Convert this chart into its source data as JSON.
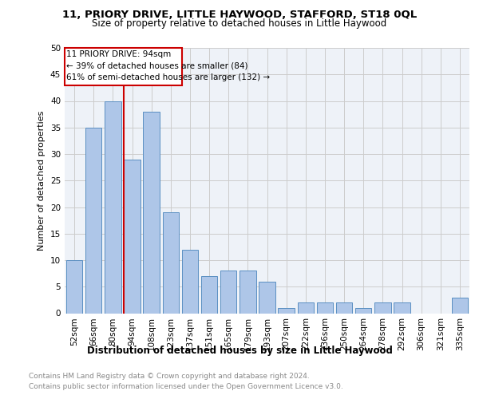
{
  "title1": "11, PRIORY DRIVE, LITTLE HAYWOOD, STAFFORD, ST18 0QL",
  "title2": "Size of property relative to detached houses in Little Haywood",
  "xlabel": "Distribution of detached houses by size in Little Haywood",
  "ylabel": "Number of detached properties",
  "footnote1": "Contains HM Land Registry data © Crown copyright and database right 2024.",
  "footnote2": "Contains public sector information licensed under the Open Government Licence v3.0.",
  "categories": [
    "52sqm",
    "66sqm",
    "80sqm",
    "94sqm",
    "108sqm",
    "123sqm",
    "137sqm",
    "151sqm",
    "165sqm",
    "179sqm",
    "193sqm",
    "207sqm",
    "222sqm",
    "236sqm",
    "250sqm",
    "264sqm",
    "278sqm",
    "292sqm",
    "306sqm",
    "321sqm",
    "335sqm"
  ],
  "values": [
    10,
    35,
    40,
    29,
    38,
    19,
    12,
    7,
    8,
    8,
    6,
    1,
    2,
    2,
    2,
    1,
    2,
    2,
    0,
    0,
    3
  ],
  "bar_color": "#aec6e8",
  "bar_edge_color": "#5a8fc2",
  "grid_color": "#cccccc",
  "property_line_x": 3,
  "property_label": "11 PRIORY DRIVE: 94sqm",
  "annotation_line1": "← 39% of detached houses are smaller (84)",
  "annotation_line2": "61% of semi-detached houses are larger (132) →",
  "box_color": "#cc0000",
  "ylim": [
    0,
    50
  ],
  "yticks": [
    0,
    5,
    10,
    15,
    20,
    25,
    30,
    35,
    40,
    45,
    50
  ],
  "bg_color": "#eef2f8",
  "title1_fontsize": 9.5,
  "title2_fontsize": 8.5,
  "xlabel_fontsize": 8.5,
  "ylabel_fontsize": 8,
  "footnote_fontsize": 6.5,
  "tick_fontsize": 7.5,
  "ann_fontsize": 7.5
}
